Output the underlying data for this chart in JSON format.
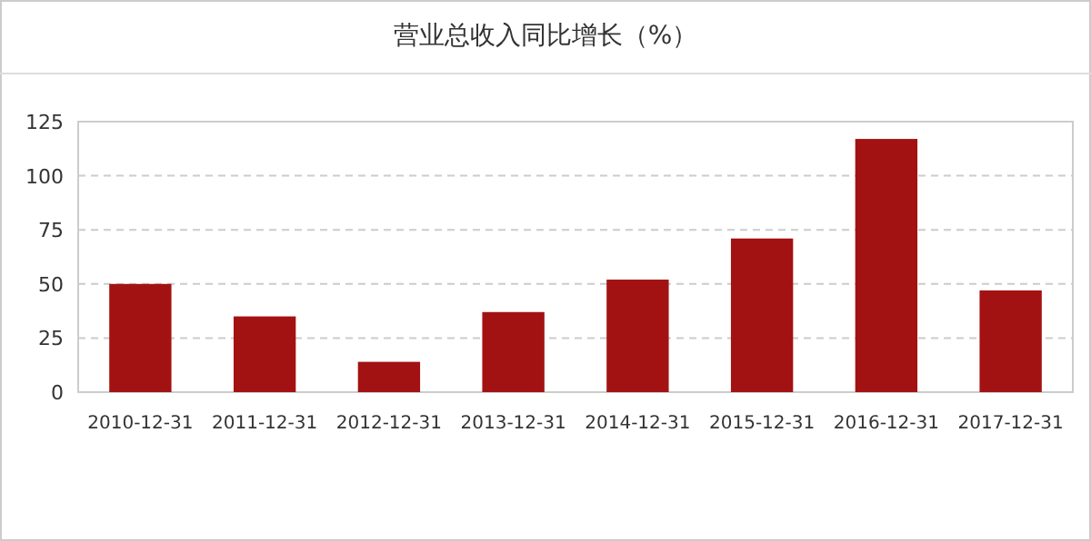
{
  "chart_data": {
    "type": "bar",
    "title": "营业总收入同比增长（%）",
    "categories": [
      "2010-12-31",
      "2011-12-31",
      "2012-12-31",
      "2013-12-31",
      "2014-12-31",
      "2015-12-31",
      "2016-12-31",
      "2017-12-31"
    ],
    "values": [
      50,
      35,
      14,
      37,
      52,
      71,
      117,
      47
    ],
    "color": "#a31212",
    "ylim": [
      0,
      125
    ],
    "yticks": [
      0,
      25,
      50,
      75,
      100,
      125
    ],
    "grid": "y"
  }
}
